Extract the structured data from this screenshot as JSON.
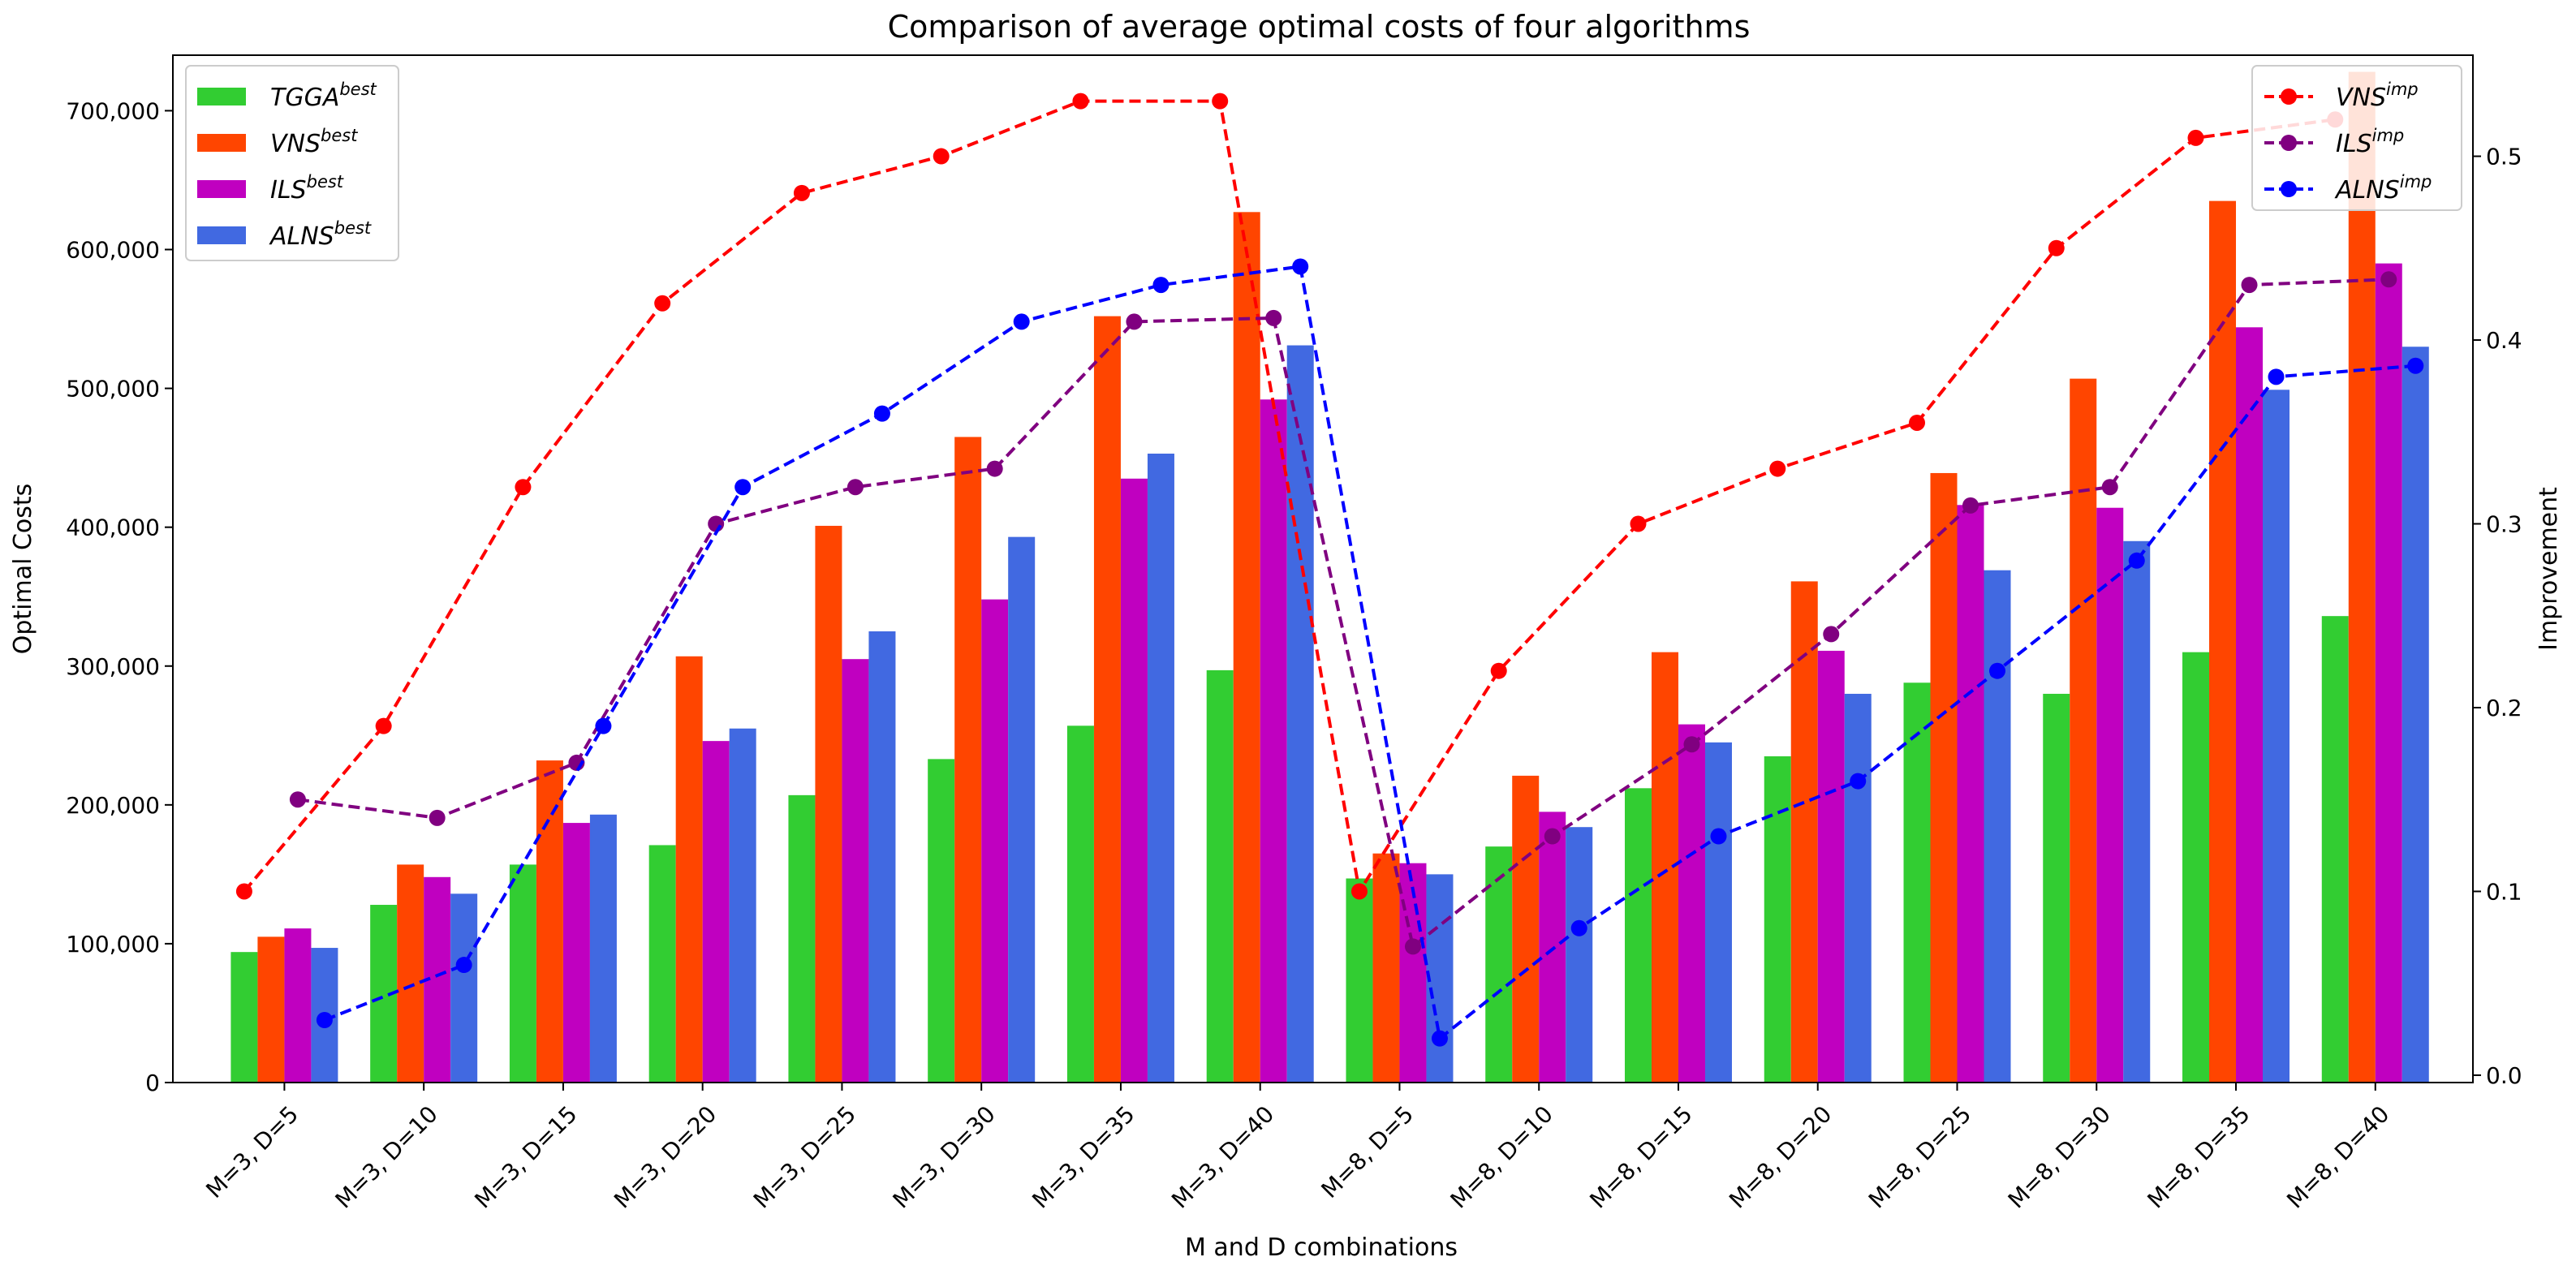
{
  "chart_data": {
    "type": "bar",
    "title": "Comparison of average optimal costs of four algorithms",
    "xlabel": "M and D combinations",
    "ylabel": "Optimal Costs",
    "y2label": "Improvement",
    "categories": [
      "M=3, D=5",
      "M=3, D=10",
      "M=3, D=15",
      "M=3, D=20",
      "M=3, D=25",
      "M=3, D=30",
      "M=3, D=35",
      "M=3, D=40",
      "M=8, D=5",
      "M=8, D=10",
      "M=8, D=15",
      "M=8, D=20",
      "M=8, D=25",
      "M=8, D=30",
      "M=8, D=35",
      "M=8, D=40"
    ],
    "ylim": [
      0,
      740000
    ],
    "yticks": [
      0,
      100000,
      200000,
      300000,
      400000,
      500000,
      600000,
      700000
    ],
    "ytick_labels": [
      "0",
      "100,000",
      "200,000",
      "300,000",
      "400,000",
      "500,000",
      "600,000",
      "700,000"
    ],
    "y2lim": [
      -0.004,
      0.555
    ],
    "y2ticks": [
      0.0,
      0.1,
      0.2,
      0.3,
      0.4,
      0.5
    ],
    "y2tick_labels": [
      "0.0",
      "0.1",
      "0.2",
      "0.3",
      "0.4",
      "0.5"
    ],
    "bar_series": [
      {
        "base": "TGGA",
        "sup": "best",
        "color": "#32cd32",
        "values": [
          94000,
          128000,
          157000,
          171000,
          207000,
          233000,
          257000,
          297000,
          147000,
          170000,
          212000,
          235000,
          288000,
          280000,
          310000,
          336000
        ]
      },
      {
        "base": "VNS",
        "sup": "best",
        "color": "#ff4500",
        "values": [
          105000,
          157000,
          232000,
          307000,
          401000,
          465000,
          552000,
          627000,
          165000,
          221000,
          310000,
          361000,
          439000,
          507000,
          635000,
          728000
        ]
      },
      {
        "base": "ILS",
        "sup": "best",
        "color": "#c000c0",
        "values": [
          111000,
          148000,
          187000,
          246000,
          305000,
          348000,
          435000,
          492000,
          158000,
          195000,
          258000,
          311000,
          416000,
          414000,
          544000,
          590000
        ]
      },
      {
        "base": "ALNS",
        "sup": "best",
        "color": "#4169e1",
        "values": [
          97000,
          136000,
          193000,
          255000,
          325000,
          393000,
          453000,
          531000,
          150000,
          184000,
          245000,
          280000,
          369000,
          390000,
          499000,
          530000
        ]
      }
    ],
    "line_series": [
      {
        "base": "VNS",
        "sup": "imp",
        "color": "#ff0000",
        "values": [
          0.1,
          0.19,
          0.32,
          0.42,
          0.48,
          0.5,
          0.53,
          0.53,
          0.1,
          0.22,
          0.3,
          0.33,
          0.355,
          0.45,
          0.51,
          0.52
        ]
      },
      {
        "base": "ILS",
        "sup": "imp",
        "color": "#800080",
        "values": [
          0.15,
          0.14,
          0.17,
          0.3,
          0.32,
          0.33,
          0.41,
          0.412,
          0.07,
          0.13,
          0.18,
          0.24,
          0.31,
          0.32,
          0.43,
          0.433
        ]
      },
      {
        "base": "ALNS",
        "sup": "imp",
        "color": "#0000ff",
        "values": [
          0.03,
          0.06,
          0.19,
          0.32,
          0.36,
          0.41,
          0.43,
          0.44,
          0.02,
          0.08,
          0.13,
          0.16,
          0.22,
          0.28,
          0.38,
          0.386
        ]
      }
    ],
    "legend_bars_position": "top-left",
    "legend_lines_position": "top-right",
    "grid": false
  }
}
